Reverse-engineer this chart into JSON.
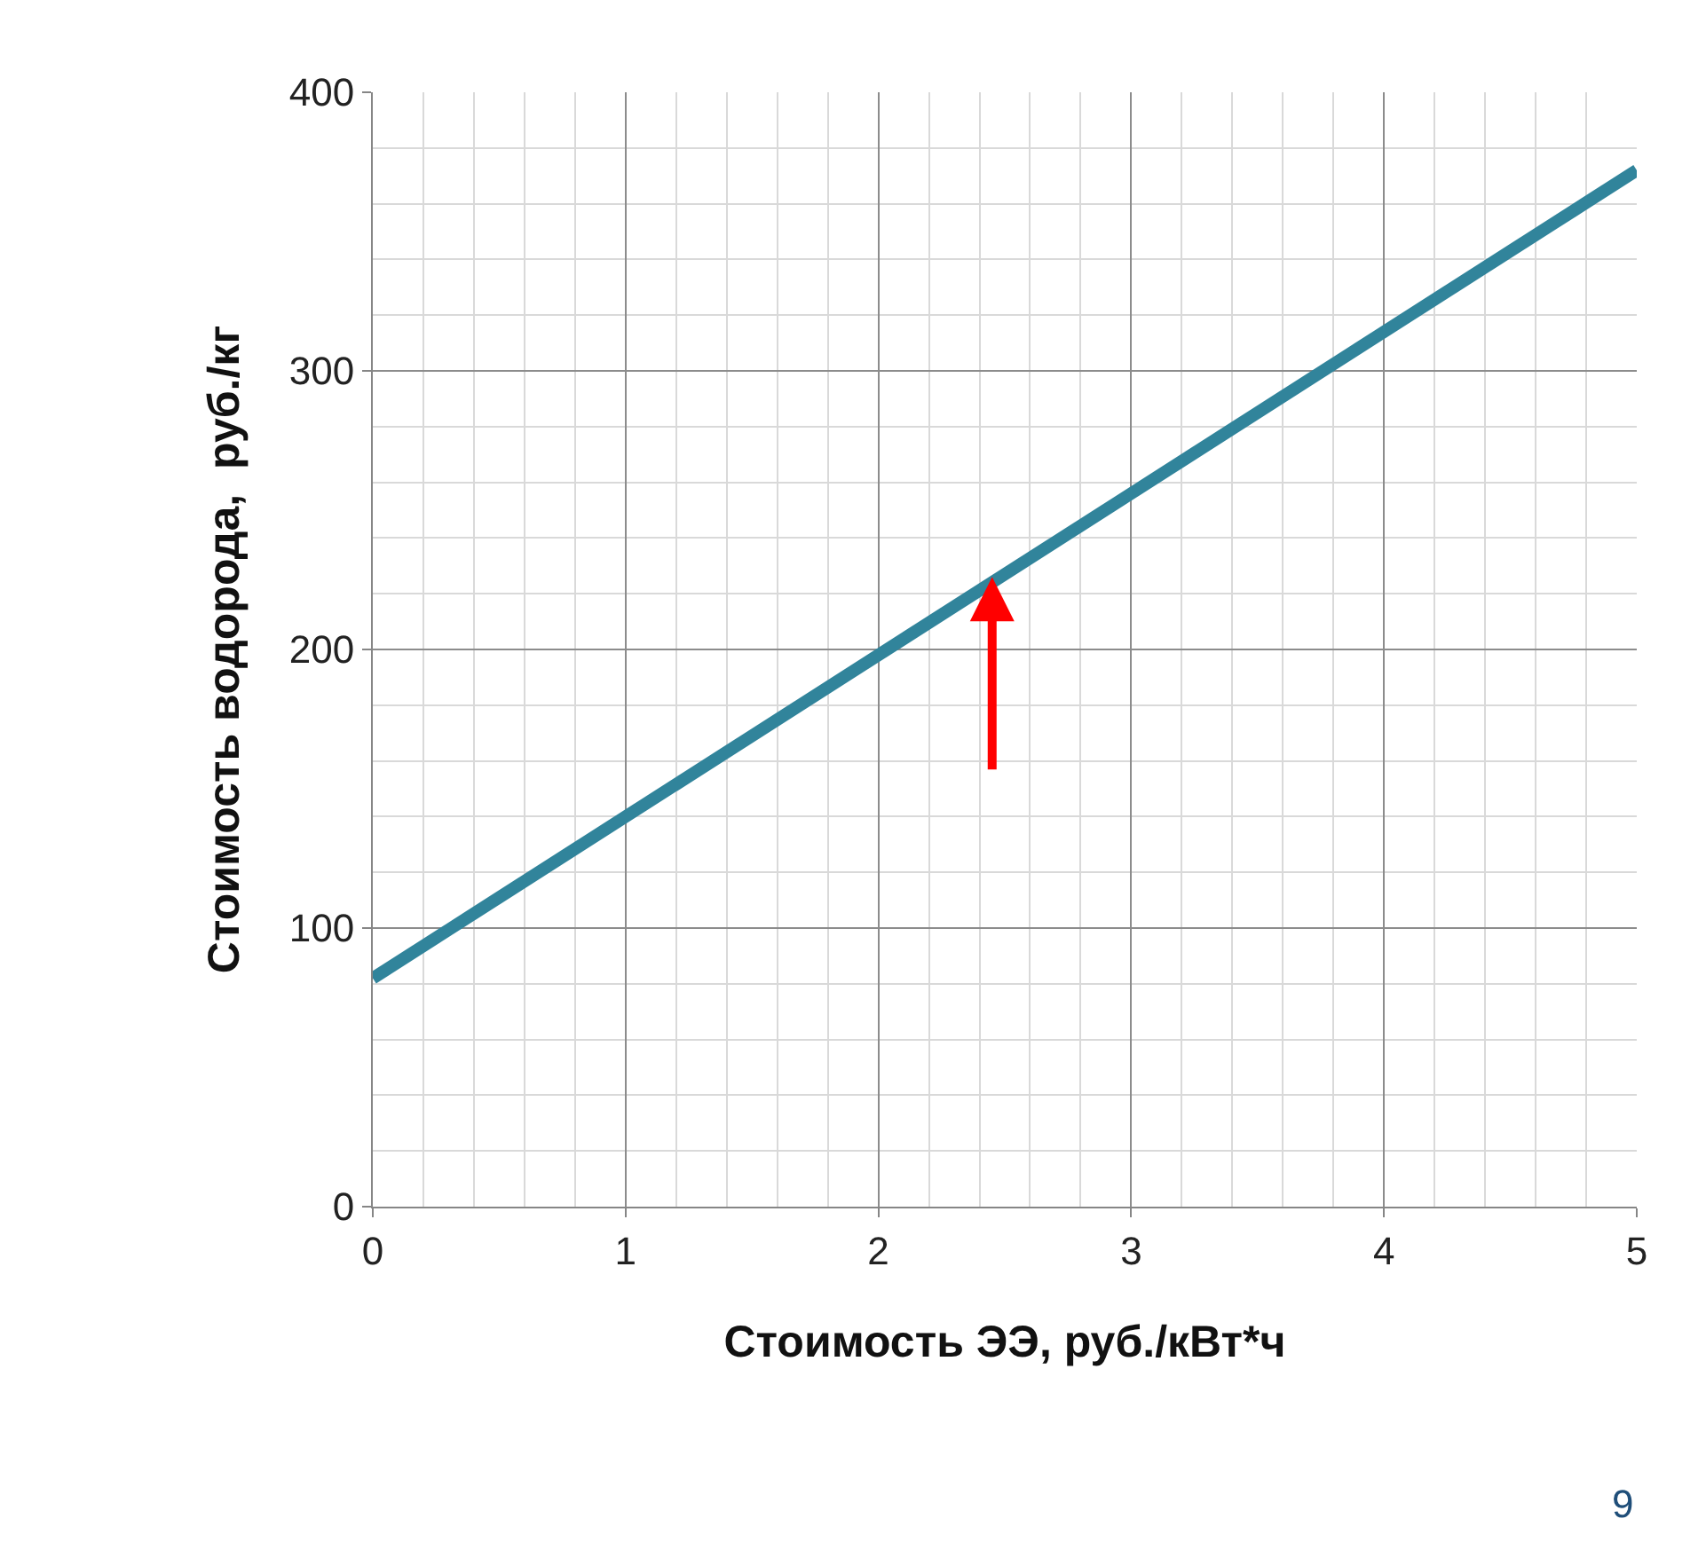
{
  "chart_data": {
    "type": "line",
    "xlabel": "Стоимость ЭЭ, руб./кВт*ч",
    "ylabel": "Стоимость водорода,  руб./кг",
    "x": [
      0,
      5
    ],
    "series": [
      {
        "color": "#31849b",
        "values": [
          82,
          372
        ]
      }
    ],
    "xlim": [
      0,
      5
    ],
    "xticks": [
      0,
      1,
      2,
      3,
      4,
      5
    ],
    "ylim": [
      0,
      400
    ],
    "yticks": [
      0,
      100,
      200,
      300,
      400
    ],
    "grid": true,
    "marker": "none",
    "line_style": "solid",
    "annotations": [
      "9"
    ]
  }
}
